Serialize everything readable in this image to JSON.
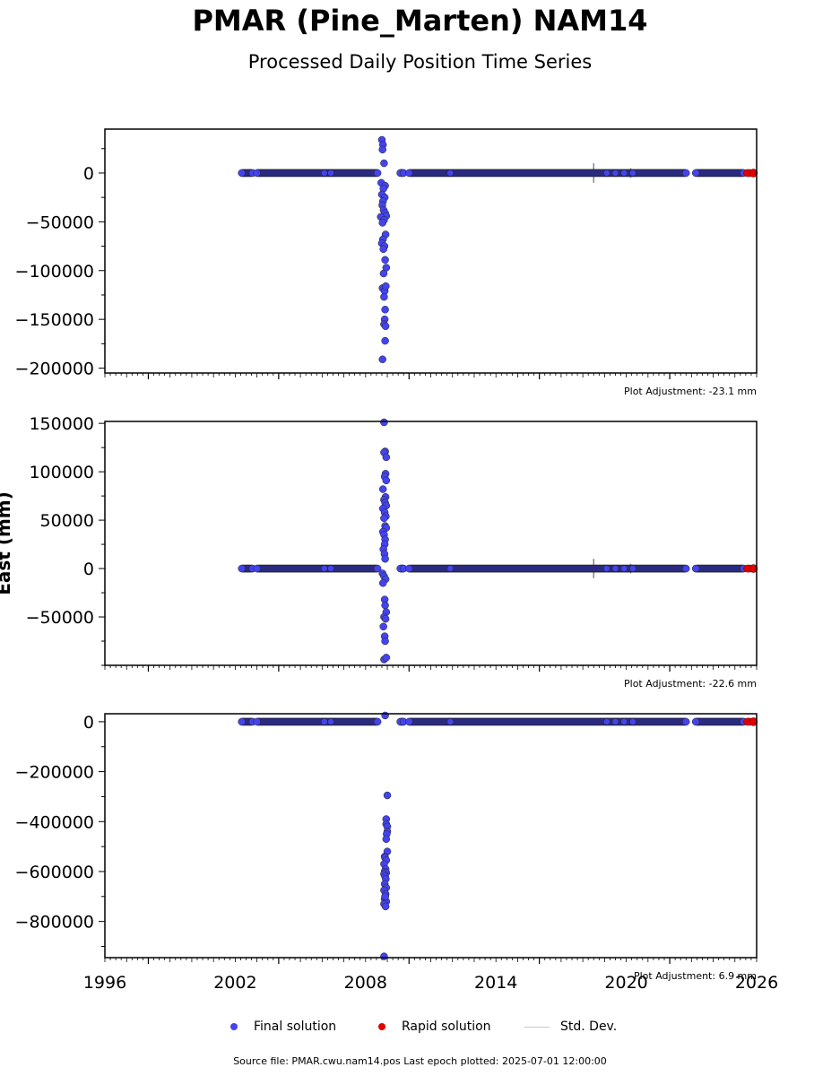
{
  "header": {
    "title": "PMAR (Pine_Marten) NAM14",
    "subtitle": "Processed Daily Position Time Series"
  },
  "chart_data": [
    {
      "type": "scatter",
      "panel": "north",
      "ylabel": "",
      "xlim": [
        1996,
        2026
      ],
      "ylim": [
        -205000,
        45000
      ],
      "yticks": [
        0,
        -50000,
        -100000,
        -150000,
        -200000
      ],
      "ytick_labels": [
        "0",
        "−50000",
        "−100000",
        "−150000",
        "−200000"
      ],
      "adjustment_label": "Plot Adjustment: -23.1 mm",
      "steady_segments": [
        [
          2002.3,
          2002.8
        ],
        [
          2003.0,
          2008.55
        ],
        [
          2009.6,
          2009.75
        ],
        [
          2010.0,
          2022.75
        ],
        [
          2023.2,
          2025.4
        ]
      ],
      "outliers": {
        "x": [
          2008.75,
          2008.8,
          2008.78,
          2008.85,
          2008.72,
          2008.9,
          2008.82,
          2008.75,
          2008.88,
          2008.8,
          2008.77,
          2008.83,
          2008.9,
          2008.95,
          2008.7,
          2008.85,
          2008.78,
          2008.92,
          2008.8,
          2008.75,
          2008.87,
          2008.82,
          2008.9,
          2008.95,
          2008.83,
          2008.78,
          2008.88,
          2008.93,
          2008.85,
          2008.9,
          2008.88,
          2008.85,
          2008.92,
          2008.9,
          2008.78
        ],
        "y": [
          34000,
          29000,
          24000,
          10000,
          -10000,
          -13000,
          -16000,
          -22000,
          -25000,
          -29000,
          -33000,
          -38000,
          -41000,
          -44000,
          -45000,
          -48000,
          -51000,
          -63000,
          -68000,
          -72000,
          -75000,
          -78000,
          -89000,
          -97000,
          -103000,
          -118000,
          -121000,
          -116000,
          -127000,
          -140000,
          -150000,
          -155000,
          -157000,
          -172000,
          -191000
        ]
      },
      "rapid_end": [
        2025.4,
        2025.85
      ],
      "std_dev_bars": [
        {
          "x": 2018.5,
          "h": 10000
        },
        {
          "x": 2020.2,
          "h": 5000
        }
      ]
    },
    {
      "type": "scatter",
      "panel": "east",
      "ylabel": "East (mm)",
      "xlim": [
        1996,
        2026
      ],
      "ylim": [
        -100000,
        152000
      ],
      "yticks": [
        150000,
        100000,
        50000,
        0,
        -50000
      ],
      "ytick_labels": [
        "150000",
        "100000",
        "50000",
        "0",
        "−50000"
      ],
      "adjustment_label": "Plot Adjustment: -22.6 mm",
      "steady_segments": [
        [
          2002.3,
          2002.8
        ],
        [
          2003.0,
          2008.55
        ],
        [
          2009.6,
          2009.75
        ],
        [
          2010.0,
          2022.75
        ],
        [
          2023.2,
          2025.4
        ]
      ],
      "outliers": {
        "x": [
          2008.85,
          2008.9,
          2008.85,
          2008.95,
          2008.92,
          2008.88,
          2008.95,
          2008.8,
          2008.92,
          2008.85,
          2008.9,
          2008.95,
          2008.8,
          2008.88,
          2008.93,
          2008.85,
          2008.9,
          2008.95,
          2008.8,
          2008.85,
          2008.9,
          2008.88,
          2008.82,
          2008.87,
          2008.9,
          2008.78,
          2008.85,
          2008.92,
          2008.8,
          2008.88,
          2008.9,
          2008.95,
          2008.85,
          2008.92,
          2008.82,
          2008.88,
          2008.9,
          2008.85,
          2008.95
        ],
        "y": [
          152000,
          121000,
          120000,
          115000,
          98000,
          95000,
          91000,
          82000,
          74000,
          71000,
          68000,
          65000,
          62000,
          58000,
          54000,
          52000,
          44000,
          42000,
          38000,
          35000,
          30000,
          25000,
          20000,
          15000,
          10000,
          -5000,
          -8000,
          -11000,
          -15000,
          -32000,
          -38000,
          -45000,
          -50000,
          -52000,
          -60000,
          -70000,
          -75000,
          -94000,
          -92000
        ]
      },
      "rapid_end": [
        2025.4,
        2025.85
      ],
      "std_dev_bars": [
        {
          "x": 2018.5,
          "h": 10000
        },
        {
          "x": 2020.2,
          "h": 5000
        }
      ]
    },
    {
      "type": "scatter",
      "panel": "up",
      "ylabel": "",
      "xlim": [
        1996,
        2026
      ],
      "ylim": [
        -945000,
        32000
      ],
      "yticks": [
        0,
        -200000,
        -400000,
        -600000,
        -800000
      ],
      "ytick_labels": [
        "0",
        "−200000",
        "−400000",
        "−600000",
        "−800000"
      ],
      "xticks": [
        1996,
        2002,
        2008,
        2014,
        2020,
        2026
      ],
      "adjustment_label": "Plot Adjustment: 6.9 mm",
      "steady_segments": [
        [
          2002.3,
          2002.8
        ],
        [
          2003.0,
          2008.55
        ],
        [
          2009.6,
          2009.75
        ],
        [
          2010.0,
          2022.75
        ],
        [
          2023.2,
          2025.4
        ]
      ],
      "outliers": {
        "x": [
          2008.9,
          2009.0,
          2008.95,
          2008.95,
          2009.0,
          2009.0,
          2008.97,
          2008.95,
          2009.0,
          2008.88,
          2008.9,
          2008.95,
          2008.85,
          2008.92,
          2008.88,
          2008.95,
          2008.85,
          2008.9,
          2008.93,
          2008.88,
          2008.95,
          2008.85,
          2008.92,
          2008.9,
          2008.88,
          2008.95,
          2008.85,
          2008.92,
          2008.9,
          2008.85
        ],
        "y": [
          25000,
          -295000,
          -390000,
          -410000,
          -420000,
          -440000,
          -450000,
          -470000,
          -520000,
          -540000,
          -545000,
          -555000,
          -570000,
          -590000,
          -600000,
          -605000,
          -610000,
          -620000,
          -630000,
          -650000,
          -665000,
          -675000,
          -690000,
          -700000,
          -710000,
          -720000,
          -730000,
          -740000,
          -700000,
          -940000
        ]
      },
      "rapid_end": [
        2025.4,
        2025.85
      ],
      "std_dev_bars": []
    }
  ],
  "legend": {
    "final": {
      "label": "Final solution",
      "color": "#4444ee"
    },
    "rapid": {
      "label": "Rapid solution",
      "color": "#e00000"
    },
    "std": {
      "label": "Std. Dev.",
      "color": "#c8c8c8"
    }
  },
  "footer": {
    "source": "Source file: PMAR.cwu.nam14.pos  Last epoch plotted: 2025-07-01 12:00:00"
  }
}
